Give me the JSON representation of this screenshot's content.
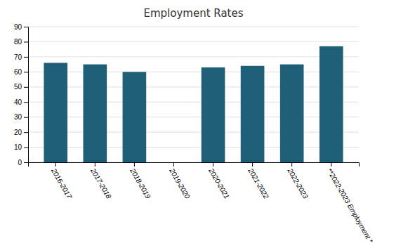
{
  "chart_data": {
    "type": "bar",
    "title": "Employment Rates",
    "categories": [
      "2016-2017",
      "2017-2018",
      "2018-2019",
      "2019-2020",
      "2020-2021",
      "2021-2022",
      "2022-2023",
      "**2022-2023 Employment *"
    ],
    "values": [
      66,
      65,
      60,
      0,
      63,
      64,
      65,
      77
    ],
    "color": "#1e5f77",
    "ylim": [
      0,
      90
    ],
    "yticks": [
      0,
      10,
      20,
      30,
      40,
      50,
      60,
      70,
      80,
      90
    ],
    "grid": true
  }
}
